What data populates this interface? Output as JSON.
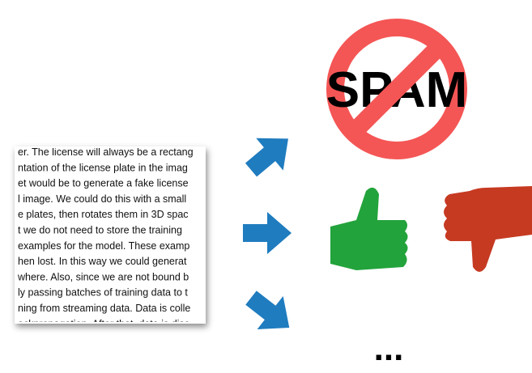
{
  "document": {
    "lines": [
      "er. The license will always be a rectang",
      "ntation of the license plate in the imag",
      "et would be to generate a fake license",
      "l image. We could do this with a small",
      "e plates, then rotates them in 3D spac",
      "t we do not need to store the training",
      "examples for the model. These examp",
      "hen lost. In this way we could generat",
      "where. Also, since we are not bound b",
      "ly passing batches of training data to t",
      "ning from streaming data. Data is colle",
      "ackpropagation. After that, data is disc"
    ]
  },
  "spam_sign": {
    "label": "SPAM"
  },
  "ellipsis": "..."
}
